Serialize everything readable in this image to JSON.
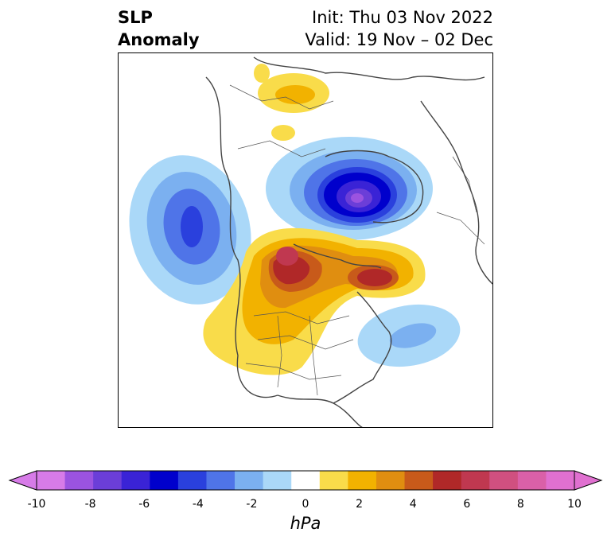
{
  "header": {
    "title_line1": "SLP",
    "title_line2": "Anomaly",
    "init_text": "Init: Thu 03 Nov 2022",
    "valid_text": "Valid: 19 Nov – 02 Dec"
  },
  "colorbar": {
    "label": "hPa",
    "ticks": [
      "-10",
      "-8",
      "-6",
      "-4",
      "-2",
      "0",
      "2",
      "4",
      "6",
      "8",
      "10"
    ],
    "colors": [
      "#d77be8",
      "#9b53e0",
      "#6b3ed8",
      "#3a23d6",
      "#0000cc",
      "#2a40dd",
      "#4f74e8",
      "#7bb0f0",
      "#aad8f8",
      "#ffffff",
      "#f9dc4a",
      "#f2b200",
      "#e08e10",
      "#c85a1a",
      "#b02828",
      "#c03850",
      "#d05080",
      "#da60a8",
      "#e070d0"
    ],
    "extend_low_color": "#d77be8",
    "extend_high_color": "#e070d0"
  }
}
